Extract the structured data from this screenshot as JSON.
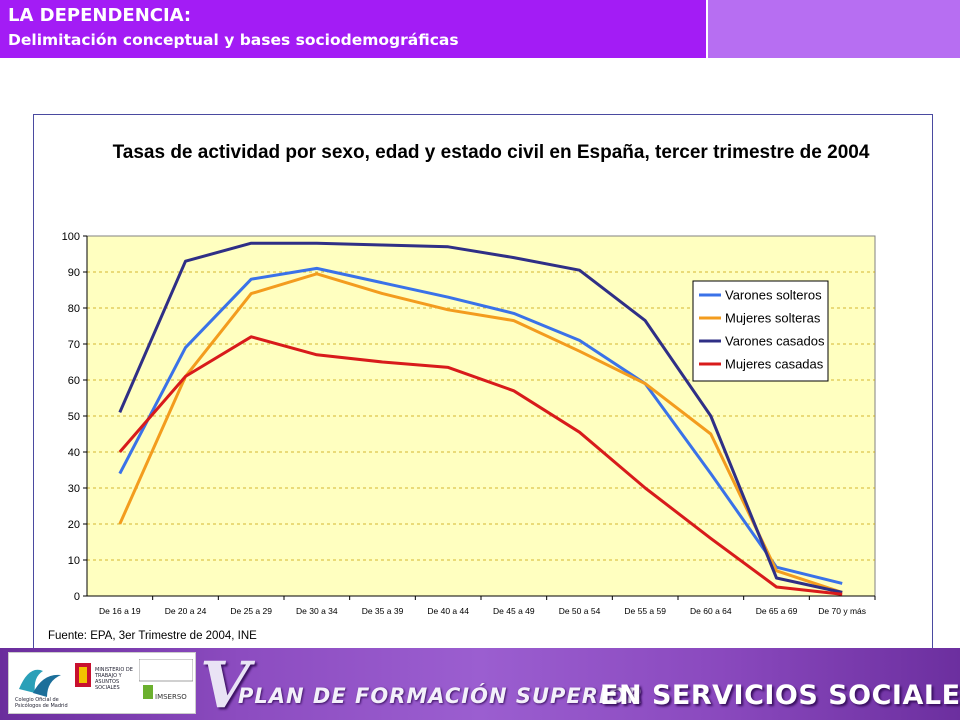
{
  "header": {
    "title": "LA DEPENDENCIA:",
    "subtitle": "Delimitación conceptual y bases sociodemográficas"
  },
  "footer": {
    "roman": "V",
    "plan_text": "PLAN DE FORMACIÓN SUPERIOR",
    "servicios_text": "EN SERVICIOS SOCIALES",
    "logo1": "Colegio Oficial de Psicólogos de Madrid",
    "logo2": "MINISTERIO DE TRABAJO Y ASUNTOS SOCIALES",
    "logo3": "IMSERSO"
  },
  "colors": {
    "header_bg": "#a31cf5",
    "plot_bg": "#ffffc0",
    "grid": "#c8a000"
  },
  "chart_data": {
    "type": "line",
    "title": "Tasas de actividad por sexo, edad y estado civil en España, tercer trimestre de 2004",
    "source": "Fuente: EPA, 3er Trimestre de 2004, INE",
    "categories": [
      "De 16 a 19",
      "De 20 a 24",
      "De 25 a 29",
      "De 30 a 34",
      "De 35 a 39",
      "De 40 a 44",
      "De 45 a 49",
      "De 50 a 54",
      "De 55 a 59",
      "De 60 a 64",
      "De 65 a 69",
      "De 70 y más"
    ],
    "ylim": [
      0,
      100
    ],
    "yticks": [
      0,
      10,
      20,
      30,
      40,
      50,
      60,
      70,
      80,
      90,
      100
    ],
    "legend": "right",
    "grid": true,
    "series": [
      {
        "name": "Varones solteros",
        "color": "#3a72e8",
        "values": [
          34,
          69,
          88,
          91,
          87,
          83,
          78.5,
          71,
          59,
          34,
          8,
          3.5
        ]
      },
      {
        "name": "Mujeres solteras",
        "color": "#f39c1e",
        "values": [
          20,
          61,
          84,
          89.5,
          84,
          79.5,
          76.5,
          68,
          59,
          45,
          7,
          1
        ]
      },
      {
        "name": "Varones casados",
        "color": "#2f2f86",
        "values": [
          51,
          93,
          98,
          98,
          97.5,
          97,
          94,
          90.5,
          76.5,
          50,
          5,
          1
        ]
      },
      {
        "name": "Mujeres casadas",
        "color": "#d81b1b",
        "values": [
          40,
          61,
          72,
          67,
          65,
          63.5,
          57,
          45.5,
          30,
          16,
          2.5,
          0.5
        ]
      }
    ]
  }
}
